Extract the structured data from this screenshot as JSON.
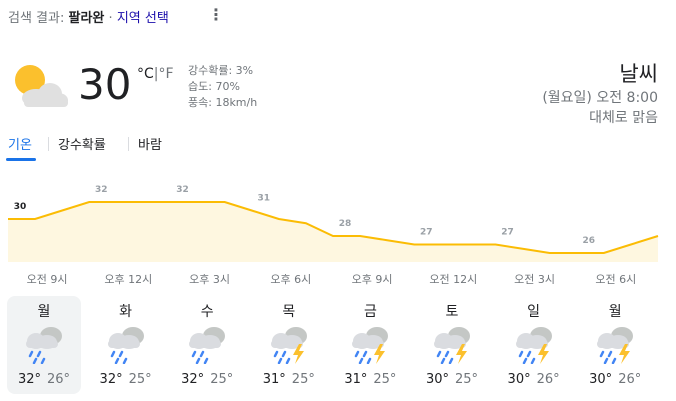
{
  "header": {
    "label": "검색 결과:",
    "query": "팔라완",
    "separator": "·",
    "link": "지역 선택"
  },
  "current": {
    "temperature": "30",
    "unit_c": "°C",
    "unit_sep": "|",
    "unit_f": "°F",
    "precipitation": "강수확률: 3%",
    "humidity": "습도: 70%",
    "wind": "풍속: 18km/h"
  },
  "summary": {
    "title": "날씨",
    "time": "(월요일) 오전 8:00",
    "condition": "대체로 맑음"
  },
  "tabs": [
    "기온",
    "강수확률",
    "바람"
  ],
  "active_tab": 0,
  "chart_data": {
    "type": "area",
    "color": "#fbbc04",
    "fill": "#fef7e0",
    "categories": [
      null,
      "오전 9시",
      null,
      null,
      "오후 12시",
      null,
      null,
      "오후 3시",
      null,
      null,
      "오후 6시",
      null,
      null,
      "오후 9시",
      null,
      null,
      "오전 12시",
      null,
      null,
      "오전 3시",
      null,
      null,
      "오전 6시",
      null,
      null
    ],
    "values": [
      30,
      30,
      31,
      32,
      32,
      32,
      32,
      32,
      32,
      31,
      30,
      29.5,
      28,
      28,
      27.5,
      27,
      27,
      27,
      27,
      26.5,
      26,
      26,
      26,
      27,
      28
    ],
    "value_labels": [
      "30",
      null,
      null,
      "32",
      null,
      null,
      "32",
      null,
      null,
      "31",
      null,
      null,
      "28",
      null,
      null,
      "27",
      null,
      null,
      "27",
      null,
      null,
      "26",
      null,
      null,
      null
    ]
  },
  "forecast": [
    {
      "day": "월",
      "icon": "rain",
      "high": "32°",
      "low": "26°"
    },
    {
      "day": "화",
      "icon": "rain",
      "high": "32°",
      "low": "25°"
    },
    {
      "day": "수",
      "icon": "rain",
      "high": "32°",
      "low": "25°"
    },
    {
      "day": "목",
      "icon": "storm",
      "high": "31°",
      "low": "25°"
    },
    {
      "day": "금",
      "icon": "storm",
      "high": "31°",
      "low": "25°"
    },
    {
      "day": "토",
      "icon": "storm",
      "high": "30°",
      "low": "25°"
    },
    {
      "day": "일",
      "icon": "storm",
      "high": "30°",
      "low": "26°"
    },
    {
      "day": "월",
      "icon": "storm",
      "high": "30°",
      "low": "26°"
    }
  ],
  "selected_day": 0
}
